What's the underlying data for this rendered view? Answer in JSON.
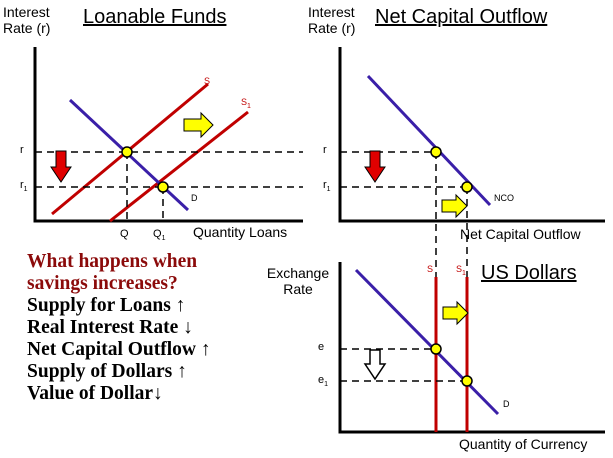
{
  "panels": {
    "loanable_funds": {
      "title": "Loanable Funds",
      "y_axis_title_line1": "Interest",
      "y_axis_title_line2": "Rate (r)",
      "x_axis_title": "Quantity Loans",
      "y_ticks": {
        "r": "r",
        "r1_base": "r",
        "r1_sub": "1"
      },
      "x_ticks": {
        "q": "Q",
        "q1_base": "Q",
        "q1_sub": "1"
      },
      "curves": {
        "s": "S",
        "s1_base": "S",
        "s1_sub": "1",
        "d": "D"
      }
    },
    "net_capital_outflow": {
      "title": "Net Capital Outflow",
      "y_axis_title_line1": "Interest",
      "y_axis_title_line2": "Rate (r)",
      "x_axis_title": "Net Capital Outflow",
      "y_ticks": {
        "r": "r",
        "r1_base": "r",
        "r1_sub": "1"
      },
      "curves": {
        "nco": "NCO"
      }
    },
    "us_dollars": {
      "title": "US Dollars",
      "y_axis_title_line1": "Exchange",
      "y_axis_title_line2": "Rate",
      "x_axis_title": "Quantity of Currency",
      "y_ticks": {
        "e": "e",
        "e1_base": "e",
        "e1_sub": "1"
      },
      "curves": {
        "s": "S",
        "s1_base": "S",
        "s1_sub": "1",
        "d": "D"
      }
    }
  },
  "summary": {
    "question_line1": "What happens when",
    "question_line2": "savings increases?",
    "items": [
      "Supply for Loans ↑",
      "Real Interest Rate ↓",
      "Net Capital Outflow ↑",
      "Supply of Dollars ↑",
      "Value of Dollar↓"
    ]
  },
  "colors": {
    "supply": "#c00000",
    "demand": "#3a1fa8",
    "point": "#ffff00",
    "shift_arrow": "#ffff00",
    "down_arrow": "#e00000"
  }
}
